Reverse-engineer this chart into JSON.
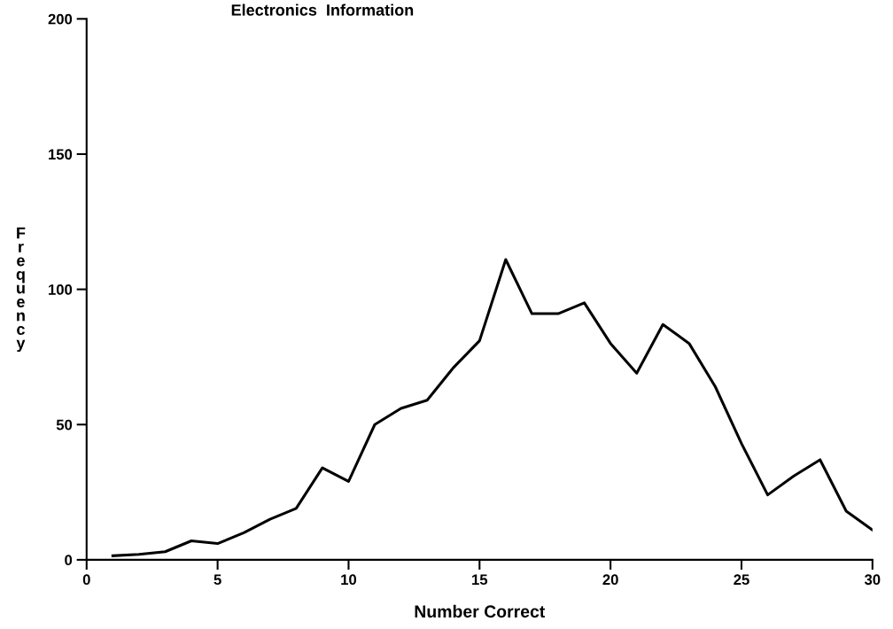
{
  "chart_data": {
    "type": "line",
    "title": "Electronics  Information",
    "xlabel": "Number Correct",
    "ylabel": "F\nr\ne\nq\nu\ne\nn\nc\ny",
    "x": [
      1,
      2,
      3,
      4,
      5,
      6,
      7,
      8,
      9,
      10,
      11,
      12,
      13,
      14,
      15,
      16,
      17,
      18,
      19,
      20,
      21,
      22,
      23,
      24,
      25,
      26,
      27,
      28,
      29,
      30
    ],
    "series": [
      {
        "color": "#000000",
        "values": [
          1.5,
          2,
          3,
          7,
          6,
          10,
          15,
          19,
          34,
          29,
          50,
          56,
          59,
          71,
          81,
          111,
          91,
          91,
          95,
          80,
          69,
          87,
          80,
          64,
          43,
          24,
          31,
          37,
          18,
          11
        ]
      }
    ],
    "xlim": [
      0,
      30
    ],
    "ylim": [
      0,
      200
    ],
    "xticks": [
      0,
      5,
      10,
      15,
      20,
      25,
      30
    ],
    "yticks": [
      0,
      50,
      100,
      150,
      200
    ],
    "grid": false,
    "legend": false,
    "marker": "none",
    "line_style": "solid"
  }
}
